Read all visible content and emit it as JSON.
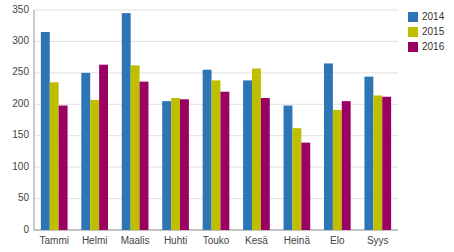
{
  "chart_data": {
    "type": "bar",
    "categories": [
      "Tammi",
      "Helmi",
      "Maalis",
      "Huhti",
      "Touko",
      "Kesä",
      "Heinä",
      "Elo",
      "Syys"
    ],
    "series": [
      {
        "name": "2014",
        "color": "#2E75B6",
        "values": [
          315,
          250,
          345,
          205,
          255,
          238,
          198,
          265,
          244
        ]
      },
      {
        "name": "2015",
        "color": "#BFBF00",
        "values": [
          235,
          207,
          262,
          210,
          238,
          257,
          162,
          191,
          214
        ]
      },
      {
        "name": "2016",
        "color": "#9B0063",
        "values": [
          198,
          263,
          236,
          208,
          220,
          210,
          139,
          205,
          212
        ]
      }
    ],
    "ylim": [
      0,
      350
    ],
    "yticks": [
      0,
      50,
      100,
      150,
      200,
      250,
      300,
      350
    ],
    "grid": true,
    "legend": "upper right"
  }
}
